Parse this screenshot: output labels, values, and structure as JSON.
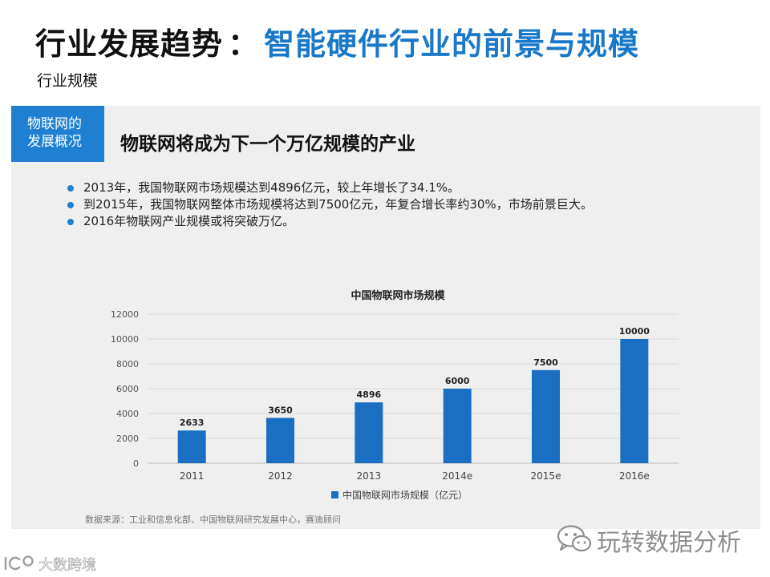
{
  "slide": {
    "title_main": "行业发展趋势",
    "title_sep": "：",
    "title_sub": "智能硬件行业的前景与规模",
    "subtitle": "行业规模"
  },
  "panel": {
    "tag_line1": "物联网的",
    "tag_line2": "发展概况",
    "heading": "物联网将成为下一个万亿规模的产业",
    "bullets": [
      "2013年，我国物联网市场规模达到4896亿元，较上年增长了34.1%。",
      "到2015年，我国物联网整体市场规模将达到7500亿元，年复合增长率约30%，市场前景巨大。",
      "2016年物联网产业规模或将突破万亿。"
    ],
    "source": "数据来源：工业和信息化部、中国物联网研究发展中心，赛迪顾问"
  },
  "chart_data": {
    "type": "bar",
    "title": "中国物联网市场规模",
    "categories": [
      "2011",
      "2012",
      "2013",
      "2014e",
      "2015e",
      "2016e"
    ],
    "series": [
      {
        "name": "中国物联网市场规模（亿元）",
        "values": [
          2633,
          3650,
          4896,
          6000,
          7500,
          10000
        ]
      }
    ],
    "yticks": [
      0,
      2000,
      4000,
      6000,
      8000,
      10000,
      12000
    ],
    "ylim": [
      0,
      12000
    ],
    "xlabel": "",
    "ylabel": "",
    "grid": true,
    "legend": "bottom",
    "bar_color": "#1a6fc2"
  },
  "watermark": {
    "text": "玩转数据分析"
  },
  "bottom_logo": {
    "text": "大数跨境"
  },
  "colors": {
    "accent": "#1a78c8",
    "tag_bg": "#1f80d1",
    "panel_bg": "#efefef"
  }
}
